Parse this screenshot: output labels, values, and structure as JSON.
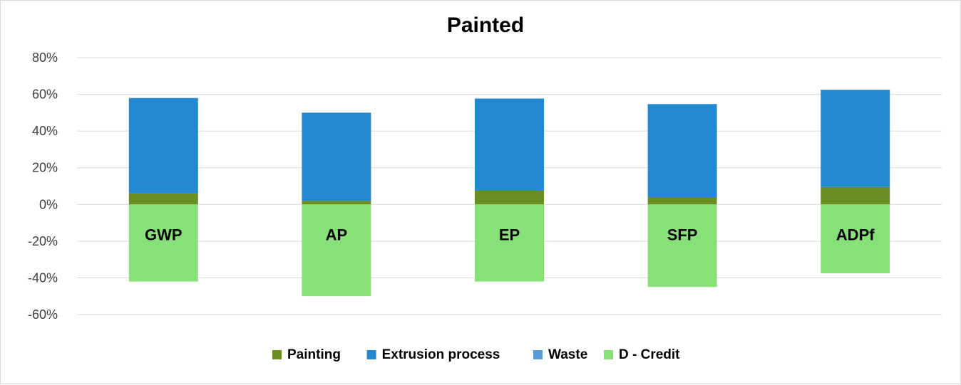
{
  "chart_data": {
    "type": "bar",
    "stacked": true,
    "title": "Painted",
    "xlabel": "",
    "ylabel": "",
    "ylim": [
      -0.6,
      0.8
    ],
    "y_ticks": [
      0.8,
      0.6,
      0.4,
      0.2,
      0.0,
      -0.2,
      -0.4,
      -0.6
    ],
    "y_tick_labels": [
      "80%",
      "60%",
      "40%",
      "20%",
      "0%",
      "-20%",
      "-40%",
      "-60%"
    ],
    "grid": true,
    "legend_position": "bottom",
    "categories": [
      "GWP",
      "AP",
      "EP",
      "SFP",
      "ADPf"
    ],
    "series": [
      {
        "name": "Painting",
        "color": "#6b8e23",
        "values": [
          0.06,
          0.02,
          0.075,
          0.04,
          0.095
        ]
      },
      {
        "name": "Extrusion process",
        "color": "#2288d0",
        "values": [
          0.52,
          0.48,
          0.502,
          0.507,
          0.53
        ]
      },
      {
        "name": "Waste",
        "color": "#5b9bd5",
        "values": [
          0.0,
          0.0,
          0.0,
          0.0,
          0.0
        ]
      },
      {
        "name": "D - Credit",
        "color": "#88e078",
        "values": [
          -0.42,
          -0.5,
          -0.42,
          -0.45,
          -0.375
        ]
      }
    ]
  }
}
